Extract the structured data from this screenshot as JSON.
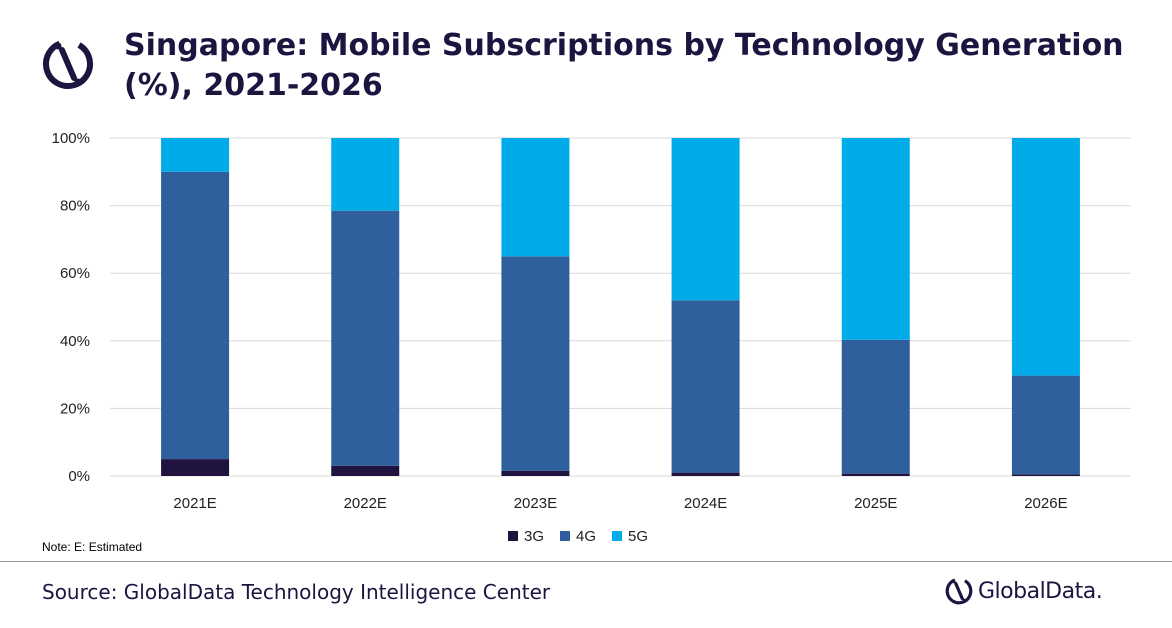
{
  "title": "Singapore: Mobile Subscriptions by Technology Generation (%), 2021-2026",
  "note": "Note: E: Estimated",
  "source": "Source: GlobalData Technology Intelligence Center",
  "brand": "GlobalData.",
  "colors": {
    "3G": "#21133f",
    "4G": "#305f9e",
    "5G": "#00abe9",
    "grid": "#d9d9d9",
    "title": "#1e1440"
  },
  "chart_data": {
    "type": "bar",
    "stacked": true,
    "categories": [
      "2021E",
      "2022E",
      "2023E",
      "2024E",
      "2025E",
      "2026E"
    ],
    "series": [
      {
        "name": "3G",
        "values": [
          5,
          3,
          1.5,
          1,
          0.7,
          0.5
        ]
      },
      {
        "name": "4G",
        "values": [
          85,
          75.5,
          63.5,
          51,
          39.6,
          29.2
        ]
      },
      {
        "name": "5G",
        "values": [
          10,
          21.5,
          35,
          48,
          59.7,
          70.3
        ]
      }
    ],
    "ylim": [
      0,
      100
    ],
    "yticks": [
      "0%",
      "20%",
      "40%",
      "60%",
      "80%",
      "100%"
    ],
    "ytick_values": [
      0,
      20,
      40,
      60,
      80,
      100
    ],
    "grid": true,
    "legend": "bottom"
  }
}
